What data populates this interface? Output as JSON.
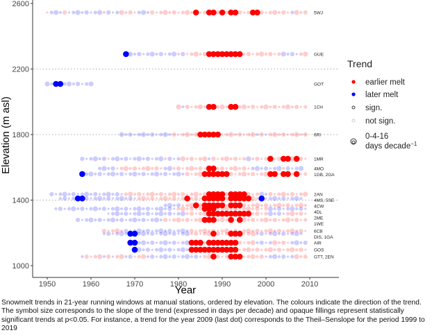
{
  "chart_data": {
    "type": "scatter",
    "xlabel": "Year",
    "ylabel": "Elevation (m asl)",
    "xlim": [
      1947,
      2013
    ],
    "ylim": [
      960,
      2620
    ],
    "xticks": [
      1950,
      1960,
      1970,
      1980,
      1990,
      2000,
      2010
    ],
    "yticks": [
      1000,
      1400,
      1800,
      2200,
      2600
    ],
    "grid": "dotted horizontal lines at 1400, 1800, 2200",
    "legend": {
      "title": "Trend",
      "placement": "right",
      "items": [
        "earlier melt",
        "later melt",
        "sign.",
        "not sign."
      ],
      "size_label_1": "0-4-16",
      "size_label_2": "days decade",
      "size_label_sup": "−1"
    },
    "colors": {
      "earlier": "#ff0000",
      "later": "#0000ff"
    },
    "code_key": "R=earlier significant, r=earlier not significant, B=later significant, b=later not significant; one character per year starting at start",
    "stations": [
      {
        "label": "5WJ",
        "elev": 2545,
        "start": 1950,
        "codes": "rbbbrbbbbbbbbrbbbrrrrbbbrrrrrrrrrrRrrRRrRrRRrrrRRrrrrrrrbrrr"
      },
      {
        "label": "GUE",
        "elev": 2291,
        "start": 1968,
        "codes": "Bbbbbbbbbbbbrbrrrrr RRRRRRRRrrrrrrrrrbbbbrr"
      },
      {
        "label": "GOT",
        "elev": 2109,
        "start": 1950,
        "codes": "bbBBbbbbbbb"
      },
      {
        "label": "1CH",
        "elev": 1969,
        "start": 1980,
        "codes": "rbrrrrrRRrrrRRrrrrrrrrrrrrrrrr"
      },
      {
        "label": "6RI",
        "elev": 1800,
        "start": 1967,
        "codes": "bbbbbbbbbbbbrrrrrrRRRRRrrrrrrrrbrbrrrrrrrrr"
      },
      {
        "label": "1MR",
        "elev": 1652,
        "start": 1958,
        "codes": "bbbbbbrbbbbbbbbbbbbrbbbrrrrrrbrrrrrrrrbrrrrRrrRRrRrr"
      },
      {
        "label": "4MO",
        "elev": 1593,
        "start": 1962,
        "codes": "bbbbrrrrrrrrrrrbbrrrrrrrrRRrrrrrrrrbbbbbbbrbbbb"
      },
      {
        "label": "1GB, 2GA",
        "elev": 1559,
        "start": 1958,
        "codes": "BbbbbbbbbbbbbbbbbbbbbbbbrrrrRRRRRRrrrrrrrrrRRrRRrRrr"
      },
      {
        "label": "2AN",
        "elev": 1436,
        "start": 1951,
        "codes": "bbbbbbbbbbbbbbbbbrrrrrrrrrrrrrrrrrrrRRRRrRRRRrrrbbrrrrrrrrr"
      },
      {
        "label": "4MS, 5SE",
        "elev": 1410,
        "start": 1953,
        "codes": "bbbbBBbbbbbbbbbbbbrrrrrrrrrrrRrrrRRRRRrRRRRRrrBbbbbbbbbb"
      },
      {
        "label": "4CW",
        "elev": 1368,
        "start": 1977,
        "codes": "bbbbrrrRrRRRRRrRRRrrrrrrrrrrrrrrr"
      },
      {
        "label": "4DL",
        "elev": 1347,
        "start": 1952,
        "codes": "bbbbbbbbbbbbbbbbbbbbbbbbbbbbrrrrrrRRRrrrrrrrrrrrrbbbbbbbbb"
      },
      {
        "label": "2ME",
        "elev": 1317,
        "start": 1964,
        "codes": "bbbbbbbbbbbbbbbbbbrrrrrRRRRRRRRRRrrrrbbbbrrrrr"
      },
      {
        "label": "1WE",
        "elev": 1279,
        "start": 1957,
        "codes": "bbbbbbbbbbbbbbbbbbbbrrrrrrrrrRRRrrrRrRrrrrrrrrrrrrrrr"
      },
      {
        "label": "6CB",
        "elev": 1212,
        "start": 1963,
        "codes": "rrrrrbbbbbbbbbbbbbbbrrrrrrrrrrrrrrrrrrrrrrrrrrr"
      },
      {
        "label": "DIS, 1GA",
        "elev": 1195,
        "start": 1963,
        "codes": "bbbbbbBBbbbbbbbbbbbbrrrrrRrrrRRRrrrbbbbbbbbbbb"
      },
      {
        "label": "AIR",
        "elev": 1140,
        "start": 1969,
        "codes": "BBbbbbbbbbbbbbRRRrRRRRRRRrrrrbbbbrrrrbbbb"
      },
      {
        "label": "GOS",
        "elev": 1097,
        "start": 1970,
        "codes": "BbbbbbbbbbbbbRRRRRRRRRRRrrrrrrrrrrrrrrrr"
      },
      {
        "label": "GTT, 2EN",
        "elev": 1055,
        "start": 1958,
        "codes": "brrrrbrbrrbbrrrbbbbbbbbbbbbbrrRrrrRRRrrrrrbbbbbbbrrr"
      }
    ]
  },
  "caption": "Snowmelt trends in 21-year running windows at manual stations, ordered by elevation. The colours indicate the direction of the trend. The symbol size corresponds to the slope of the trend (expressed in days per decade) and opaque fillings represent statistically significant trends at p<0.05. For instance, a trend for the year 2009 (last dot) corresponds to the Theil–Senslope for the period 1999 to 2019"
}
